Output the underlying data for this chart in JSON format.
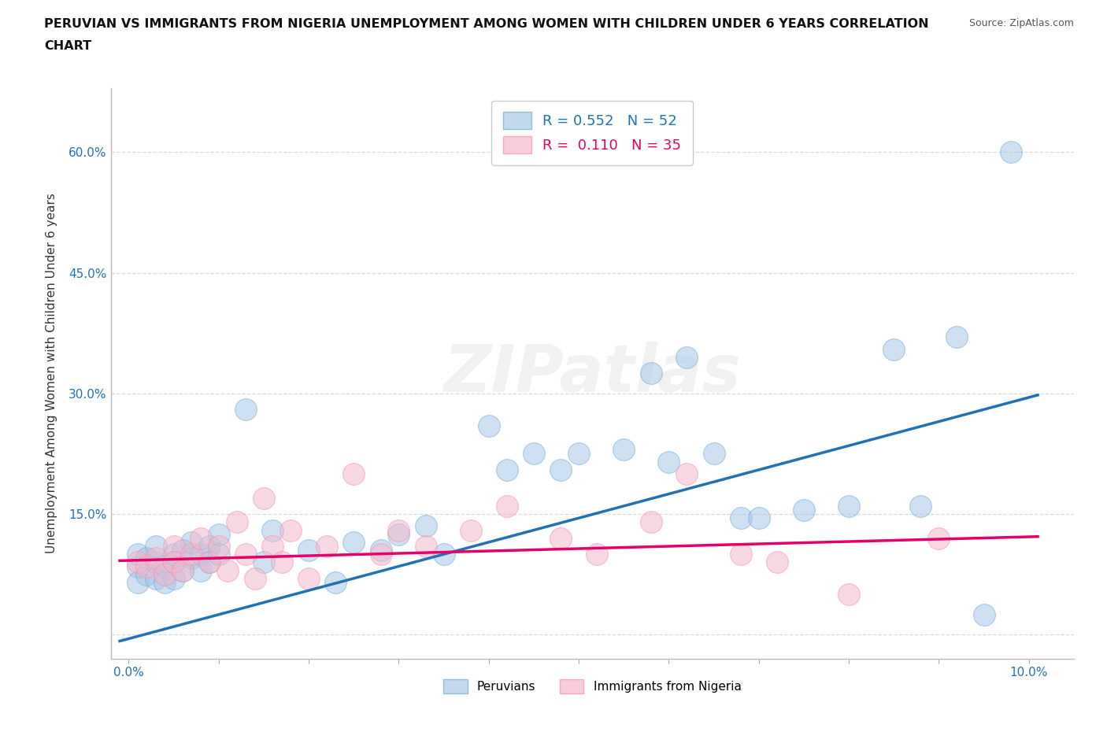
{
  "title_line1": "PERUVIAN VS IMMIGRANTS FROM NIGERIA UNEMPLOYMENT AMONG WOMEN WITH CHILDREN UNDER 6 YEARS CORRELATION",
  "title_line2": "CHART",
  "source": "Source: ZipAtlas.com",
  "ylabel_label": "Unemployment Among Women with Children Under 6 years",
  "legend_entry1": "R = 0.552   N = 52",
  "legend_entry2": "R =  0.110   N = 35",
  "blue_color": "#a8c8e8",
  "blue_edge_color": "#6baed6",
  "pink_color": "#f4b8cc",
  "pink_edge_color": "#fc8dae",
  "blue_line_color": "#2171b5",
  "pink_line_color": "#e5006a",
  "background_color": "#ffffff",
  "grid_color": "#d0d0d0",
  "watermark": "ZIPatlas",
  "xlim": [
    -0.002,
    0.105
  ],
  "ylim": [
    -0.03,
    0.68
  ],
  "peruvians_x": [
    0.001,
    0.001,
    0.001,
    0.002,
    0.002,
    0.003,
    0.003,
    0.003,
    0.004,
    0.004,
    0.005,
    0.005,
    0.005,
    0.006,
    0.006,
    0.007,
    0.007,
    0.008,
    0.008,
    0.009,
    0.009,
    0.01,
    0.01,
    0.013,
    0.015,
    0.016,
    0.02,
    0.023,
    0.025,
    0.028,
    0.03,
    0.033,
    0.035,
    0.04,
    0.045,
    0.048,
    0.055,
    0.06,
    0.065,
    0.068,
    0.042,
    0.05,
    0.058,
    0.062,
    0.07,
    0.075,
    0.08,
    0.085,
    0.088,
    0.092,
    0.095,
    0.098
  ],
  "peruvians_y": [
    0.085,
    0.065,
    0.1,
    0.075,
    0.095,
    0.07,
    0.09,
    0.11,
    0.085,
    0.065,
    0.1,
    0.07,
    0.09,
    0.105,
    0.08,
    0.095,
    0.115,
    0.1,
    0.08,
    0.11,
    0.09,
    0.125,
    0.1,
    0.28,
    0.09,
    0.13,
    0.105,
    0.065,
    0.115,
    0.105,
    0.125,
    0.135,
    0.1,
    0.26,
    0.225,
    0.205,
    0.23,
    0.215,
    0.225,
    0.145,
    0.205,
    0.225,
    0.325,
    0.345,
    0.145,
    0.155,
    0.16,
    0.355,
    0.16,
    0.37,
    0.025,
    0.6
  ],
  "nigeria_x": [
    0.001,
    0.002,
    0.003,
    0.004,
    0.005,
    0.005,
    0.006,
    0.007,
    0.008,
    0.009,
    0.01,
    0.011,
    0.012,
    0.013,
    0.014,
    0.015,
    0.016,
    0.017,
    0.018,
    0.02,
    0.022,
    0.025,
    0.028,
    0.03,
    0.033,
    0.038,
    0.042,
    0.048,
    0.052,
    0.058,
    0.062,
    0.068,
    0.072,
    0.08,
    0.09
  ],
  "nigeria_y": [
    0.09,
    0.085,
    0.095,
    0.075,
    0.11,
    0.09,
    0.08,
    0.1,
    0.12,
    0.09,
    0.11,
    0.08,
    0.14,
    0.1,
    0.07,
    0.17,
    0.11,
    0.09,
    0.13,
    0.07,
    0.11,
    0.2,
    0.1,
    0.13,
    0.11,
    0.13,
    0.16,
    0.12,
    0.1,
    0.14,
    0.2,
    0.1,
    0.09,
    0.05,
    0.12
  ],
  "blue_trendline_x": [
    -0.001,
    0.101
  ],
  "blue_trendline_y": [
    -0.008,
    0.298
  ],
  "pink_trendline_x": [
    -0.001,
    0.101
  ],
  "pink_trendline_y": [
    0.092,
    0.122
  ]
}
